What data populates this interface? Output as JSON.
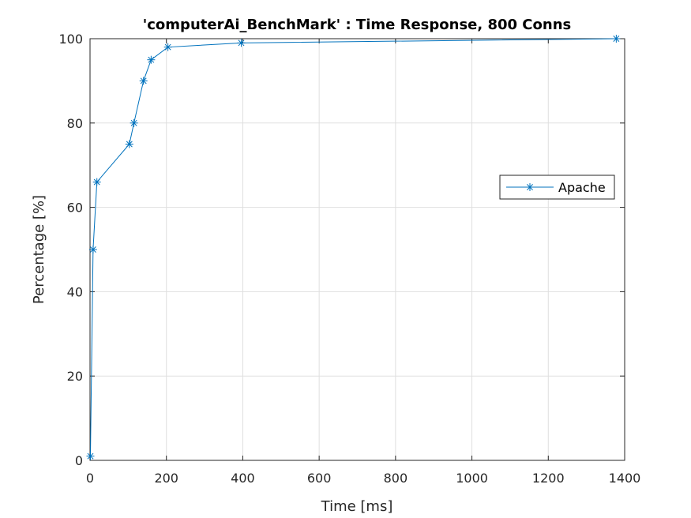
{
  "chart_data": {
    "type": "line",
    "title": "'computerAi_BenchMark' : Time Response, 800 Conns",
    "xlabel": "Time [ms]",
    "ylabel": "Percentage [%]",
    "xlim": [
      0,
      1400
    ],
    "ylim": [
      0,
      100
    ],
    "xticks": [
      0,
      200,
      400,
      600,
      800,
      1000,
      1200,
      1400
    ],
    "yticks": [
      0,
      20,
      40,
      60,
      80,
      100
    ],
    "grid": true,
    "legend_position": "right",
    "marker": "asterisk",
    "series": [
      {
        "name": "Apache",
        "color": "#0072BD",
        "x": [
          1,
          8,
          18,
          103,
          115,
          140,
          160,
          204,
          396,
          1378
        ],
        "y": [
          1,
          50,
          66,
          75,
          80,
          90,
          95,
          98,
          99,
          100
        ]
      }
    ]
  }
}
